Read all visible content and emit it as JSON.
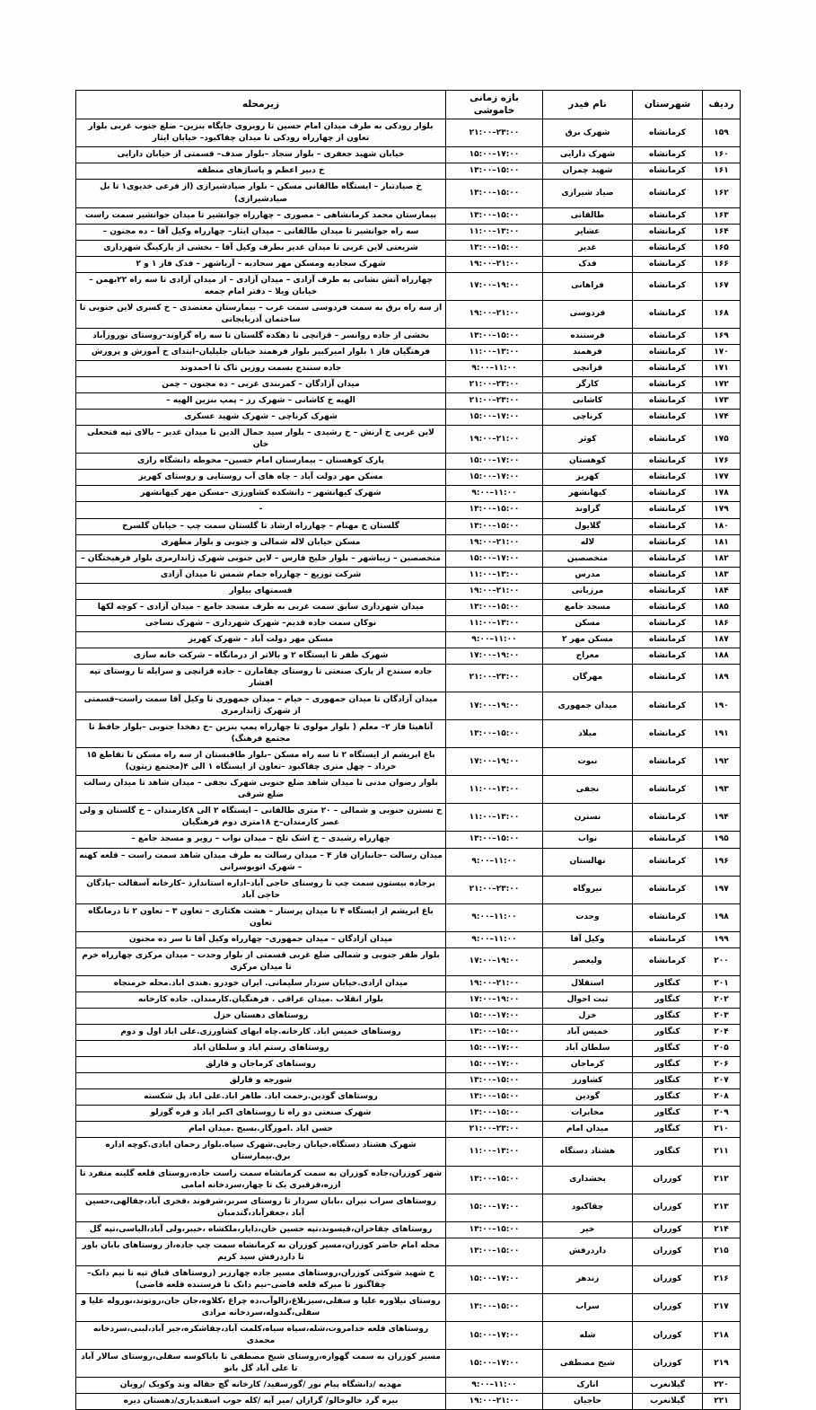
{
  "table": {
    "headers": {
      "row_no": "ردیف",
      "county": "شهرستان",
      "feeder": "نام فیدر",
      "time_range": "بازه زمانی خاموشی",
      "sub_area": "زیرمحله"
    },
    "rows": [
      {
        "no": "۱۵۹",
        "county": "کرمانشاه",
        "feeder": "شهرک برق",
        "time": "۲۱:۰۰–۲۳:۰۰",
        "area": "بلوار رودکی به طرف میدان امام حسین تا روبروی جایگاه بنزین– ضلع جنوب غربی بلوار تعاون از چهارراه رودکی تا میدان چقاکبود– خیابان ایثار"
      },
      {
        "no": "۱۶۰",
        "county": "کرمانشاه",
        "feeder": "شهرک دارایی",
        "time": "۱۵:۰۰–۱۷:۰۰",
        "area": "خیابان شهید جعفری – بلوار سجاد –بلوار صدف– قسمتی از خیابان دارایی"
      },
      {
        "no": "۱۶۱",
        "county": "کرمانشاه",
        "feeder": "شهید چمران",
        "time": "۱۳:۰۰–۱۵:۰۰",
        "area": "خ دبیر اعظم و پاساژهای منطقه"
      },
      {
        "no": "۱۶۲",
        "county": "کرمانشاه",
        "feeder": "صیاد شیرازی",
        "time": "۱۳:۰۰–۱۵:۰۰",
        "area": "خ صیادتبار – ایستگاه طالقانی مسکن – بلوار صیادشیرازی (از فرعی خدیوی۱ تا بل صیادشیرازی)"
      },
      {
        "no": "۱۶۳",
        "county": "کرمانشاه",
        "feeder": "طالقانی",
        "time": "۱۳:۰۰–۱۵:۰۰",
        "area": "بیمارستان محمد کرمانشاهی – مصوری – چهارراه جوانشیر تا میدان جوانشیر سمت راست"
      },
      {
        "no": "۱۶۴",
        "county": "کرمانشاه",
        "feeder": "عشایر",
        "time": "۱۱:۰۰–۱۳:۰۰",
        "area": "سه راه جوانشیر تا میدان طالقانی – میدان ایثار– چهارراه وکیل آقا – ده مجنون –"
      },
      {
        "no": "۱۶۵",
        "county": "کرمانشاه",
        "feeder": "غدیر",
        "time": "۱۳:۰۰–۱۵:۰۰",
        "area": "شریعتی لاین غربی تا میدان غدیر بطرف وکیل آقا – بخشی از پارکینگ شهرداری"
      },
      {
        "no": "۱۶۶",
        "county": "کرمانشاه",
        "feeder": "فدک",
        "time": "۱۹:۰۰–۲۱:۰۰",
        "area": "شهرک سجادیه ومسکن مهر سجادیه – آریاشهر – فدک فاز ۱ و ۲"
      },
      {
        "no": "۱۶۷",
        "county": "کرمانشاه",
        "feeder": "فراهانی",
        "time": "۱۷:۰۰–۱۹:۰۰",
        "area": "چهارراه آتش نشانی به طرف آزادی – میدان آزادی – از میدان آزادی تا سه راه ۲۲بهمن – خیابان ویلا – دفتر امام جمعه"
      },
      {
        "no": "۱۶۸",
        "county": "کرمانشاه",
        "feeder": "فردوسی",
        "time": "۱۹:۰۰–۲۱:۰۰",
        "area": "از سه راه برق به سمت فردوسی سمت غرب – بیمارستان معتضدی – خ کسری لاین جنوبی تا ساختمان آذربایجانی"
      },
      {
        "no": "۱۶۹",
        "county": "کرمانشاه",
        "feeder": "فرستنده",
        "time": "۱۳:۰۰–۱۵:۰۰",
        "area": "بخشی از جاده روانسر – قزانچی تا دهکده گلستان تا سه راه گراوند–روستای نوروزآباد"
      },
      {
        "no": "۱۷۰",
        "county": "کرمانشاه",
        "feeder": "فرهمند",
        "time": "۱۱:۰۰–۱۳:۰۰",
        "area": "فرهنگیان فاز ۱ بلوار امیرکبیر بلوار فرهمند خیابان جلیلیان–ابتدای خ آموزش و پرورش"
      },
      {
        "no": "۱۷۱",
        "county": "کرمانشاه",
        "feeder": "قزانچی",
        "time": "۹:۰۰–۱۱:۰۰",
        "area": "جاده سنندج بسمت روزین تاک تا احمدوند"
      },
      {
        "no": "۱۷۲",
        "county": "کرمانشاه",
        "feeder": "کارگر",
        "time": "۲۱:۰۰–۲۳:۰۰",
        "area": "میدان آزادگان – کمربندی غربی – ده مجنون – چمن"
      },
      {
        "no": "۱۷۳",
        "county": "کرمانشاه",
        "feeder": "کاشانی",
        "time": "۲۱:۰۰–۲۳:۰۰",
        "area": "الهیه خ کاشانی – شهرک رز – پمپ بنزین الهیه –"
      },
      {
        "no": "۱۷۴",
        "county": "کرمانشاه",
        "feeder": "کرناچی",
        "time": "۱۵:۰۰–۱۷:۰۰",
        "area": "شهرک کرناچی – شهرک شهید عسکری"
      },
      {
        "no": "۱۷۵",
        "county": "کرمانشاه",
        "feeder": "کوثر",
        "time": "۱۹:۰۰–۲۱:۰۰",
        "area": "لاین غربی خ ارنش – خ رشیدی – بلوار سید جمال الدین تا میدان غدیر – بالای تپه فتحعلی خان"
      },
      {
        "no": "۱۷۶",
        "county": "کرمانشاه",
        "feeder": "کوهستان",
        "time": "۱۵:۰۰–۱۷:۰۰",
        "area": "پارک کوهستان – بیمارستان امام حسین– محوطه دانشگاه رازی"
      },
      {
        "no": "۱۷۷",
        "county": "کرمانشاه",
        "feeder": "کهریز",
        "time": "۱۵:۰۰–۱۷:۰۰",
        "area": "مسکن مهر دولت آباد – چاه های آب روستایی و روستای کهریز"
      },
      {
        "no": "۱۷۸",
        "county": "کرمانشاه",
        "feeder": "کیهانشهر",
        "time": "۹:۰۰–۱۱:۰۰",
        "area": "شهرک کیهانشهر – دانشکده کشاورزی –مسکن مهر کیهانشهر"
      },
      {
        "no": "۱۷۹",
        "county": "کرمانشاه",
        "feeder": "گراوند",
        "time": "۱۳:۰۰–۱۵:۰۰",
        "area": "-"
      },
      {
        "no": "۱۸۰",
        "county": "کرمانشاه",
        "feeder": "گلایول",
        "time": "۱۳:۰۰–۱۵:۰۰",
        "area": "گلستان خ مهنام – چهارراه ارشاد تا گلستان سمت چپ – خیابان گلسرخ"
      },
      {
        "no": "۱۸۱",
        "county": "کرمانشاه",
        "feeder": "لاله",
        "time": "۱۹:۰۰–۲۱:۰۰",
        "area": "مسکن خیابان لاله شمالی و جنوبی و بلوار مطهری"
      },
      {
        "no": "۱۸۲",
        "county": "کرمانشاه",
        "feeder": "متخصصین",
        "time": "۱۵:۰۰–۱۷:۰۰",
        "area": "متخصصین – زیباشهر – بلوار خلیج فارس – لاین جنوبی شهرک ژاندارمری بلوار فرهیختگان –"
      },
      {
        "no": "۱۸۳",
        "county": "کرمانشاه",
        "feeder": "مدرس",
        "time": "۱۱:۰۰–۱۳:۰۰",
        "area": "شرکت توزیع – چهارراه حمام شمس تا میدان آزادی"
      },
      {
        "no": "۱۸۴",
        "county": "کرمانشاه",
        "feeder": "مرزبانی",
        "time": "۱۹:۰۰–۲۱:۰۰",
        "area": "قسمتهای بیلوار"
      },
      {
        "no": "۱۸۵",
        "county": "کرمانشاه",
        "feeder": "مسجد جامع",
        "time": "۱۳:۰۰–۱۵:۰۰",
        "area": "میدان شهرداری سابق سمت غربی به طرف مسجد جامع – میدان آزادی – کوچه لکها"
      },
      {
        "no": "۱۸۶",
        "county": "کرمانشاه",
        "feeder": "مسکن",
        "time": "۱۱:۰۰–۱۳:۰۰",
        "area": "نوکان سمت جاده قدیم– شهرک شهرداری – شهرک نساجی"
      },
      {
        "no": "۱۸۷",
        "county": "کرمانشاه",
        "feeder": "مسکن مهر ۲",
        "time": "۹:۰۰–۱۱:۰۰",
        "area": "مسکن مهر دولت آباد – شهرک کهریز"
      },
      {
        "no": "۱۸۸",
        "county": "کرمانشاه",
        "feeder": "معراج",
        "time": "۱۷:۰۰–۱۹:۰۰",
        "area": "شهرک ظفر تا ایستگاه ۲ و بالاتر از درمانگاه – شرکت خانه سازی"
      },
      {
        "no": "۱۸۹",
        "county": "کرمانشاه",
        "feeder": "مهرگان",
        "time": "۲۱:۰۰–۲۳:۰۰",
        "area": "جاده سنندج از پارک صنعتی تا روستای چقامارن – جاده قزانچی و سرایله تا روستای تپه افشار"
      },
      {
        "no": "۱۹۰",
        "county": "کرمانشاه",
        "feeder": "میدان جمهوری",
        "time": "۱۷:۰۰–۱۹:۰۰",
        "area": "میدان آزادگان تا میدان جمهوری – خیام – میدان جمهوری تا وکیل آقا سمت راست–قسمتی از شهرک ژاندارمری"
      },
      {
        "no": "۱۹۱",
        "county": "کرمانشاه",
        "feeder": "میلاد",
        "time": "۱۳:۰۰–۱۵:۰۰",
        "area": "آناهیتا فاز ۲– معلم ( بلوار مولوی تا چهارراه پمپ بنزین –خ دهخدا جنوبی –بلوار حافظ تا مجتمع فرهنگ)"
      },
      {
        "no": "۱۹۲",
        "county": "کرمانشاه",
        "feeder": "نبوت",
        "time": "۱۷:۰۰–۱۹:۰۰",
        "area": "باغ ابریشم از ایستگاه ۲ تا سه راه مسکن –بلوار طاقبستان از سه راه مسکن تا تقاطع ۱۵ خرداد – چهل متری چقاکبود –تعاون از ایستگاه ۱ الی ۴(مجتمع زیتون)"
      },
      {
        "no": "۱۹۳",
        "county": "کرمانشاه",
        "feeder": "نجفی",
        "time": "۱۱:۰۰–۱۳:۰۰",
        "area": "بلوار رضوان مدنی تا میدان شاهد ضلع جنوبی شهرک نجفی – میدان شاهد تا میدان رسالت ضلع شرقی"
      },
      {
        "no": "۱۹۴",
        "county": "کرمانشاه",
        "feeder": "نسترن",
        "time": "۱۱:۰۰–۱۳:۰۰",
        "area": "خ نسترن جنوبی و شمالی – ۲۰ متری طالقانی – ایستگاه ۲ الی ۸کارمندان – خ گلستان و ولی عصر کارمندان–خ ۱۸متری دوم فرهنگیان"
      },
      {
        "no": "۱۹۵",
        "county": "کرمانشاه",
        "feeder": "نواب",
        "time": "۱۳:۰۰–۱۵:۰۰",
        "area": "چهارراه رشیدی – خ اشک تلخ – میدان نواب – رویر و مسجد جامع –"
      },
      {
        "no": "۱۹۶",
        "county": "کرمانشاه",
        "feeder": "نهالستان",
        "time": "۹:۰۰–۱۱:۰۰",
        "area": "میدان رسالت –جانبازان فاز ۴ – میدان رسالت به طرف میدان شاهد سمت راست – قلعه کهنه – شهرک اتوبوسرانی"
      },
      {
        "no": "۱۹۷",
        "county": "کرمانشاه",
        "feeder": "نیروگاه",
        "time": "۲۱:۰۰–۲۳:۰۰",
        "area": "برجاده بیستون سمت چپ تا روستای حاجی آباد–اداره استاندارد –کارخانه آسفالت –پادگان حاجی آباد"
      },
      {
        "no": "۱۹۸",
        "county": "کرمانشاه",
        "feeder": "وحدت",
        "time": "۹:۰۰–۱۱:۰۰",
        "area": "باغ ابریشم از ایستگاه ۴ تا میدان پرستار – هشت هکتاری – تعاون ۳ – تعاون ۲ تا درمانگاه تعاون"
      },
      {
        "no": "۱۹۹",
        "county": "کرمانشاه",
        "feeder": "وکیل آقا",
        "time": "۹:۰۰–۱۱:۰۰",
        "area": "میدان آزادگان – میدان جمهوری– چهارراه وکیل آقا تا سر ده مجنون"
      },
      {
        "no": "۲۰۰",
        "county": "کرمانشاه",
        "feeder": "ولیعصر",
        "time": "۱۷:۰۰–۱۹:۰۰",
        "area": "بلوار ظفر جنوبی و شمالی ضلع غربی قسمتی از بلوار وحدت – میدان مرکزی چهارراه خرم تا میدان مرکزی"
      },
      {
        "no": "۲۰۱",
        "county": "کنگاور",
        "feeder": "استقلال",
        "time": "۱۹:۰۰–۲۱:۰۰",
        "area": "میدان ازادی.خیابان سردار سلیمانی. ایران خودرو .هندی اباد.محله خرمنجاه"
      },
      {
        "no": "۲۰۲",
        "county": "کنگاور",
        "feeder": "ثبت احوال",
        "time": "۱۷:۰۰–۱۹:۰۰",
        "area": "بلوار انقلاب .میدان عراقی . فرهنگیان.کارمندان. جاده کارخانه"
      },
      {
        "no": "۲۰۳",
        "county": "کنگاور",
        "feeder": "خزل",
        "time": "۱۵:۰۰–۱۷:۰۰",
        "area": "روستاهای دهستان خزل"
      },
      {
        "no": "۲۰۴",
        "county": "کنگاور",
        "feeder": "خمیس آباد",
        "time": "۱۳:۰۰–۱۵:۰۰",
        "area": "روستاهای خمیس اباد. کارخانه.چاه ابهای کشاورزی.علی اباد اول و دوم"
      },
      {
        "no": "۲۰۵",
        "county": "کنگاور",
        "feeder": "سلطان آباد",
        "time": "۱۵:۰۰–۱۷:۰۰",
        "area": "روستاهای رستم اباد و سلطان اباد"
      },
      {
        "no": "۲۰۶",
        "county": "کنگاور",
        "feeder": "کرماجان",
        "time": "۱۵:۰۰–۱۷:۰۰",
        "area": "روستاهای کرماجان و قارلق"
      },
      {
        "no": "۲۰۷",
        "county": "کنگاور",
        "feeder": "کشاورز",
        "time": "۱۳:۰۰–۱۵:۰۰",
        "area": "شورجه و قارلق"
      },
      {
        "no": "۲۰۸",
        "county": "کنگاور",
        "feeder": "گودین",
        "time": "۱۳:۰۰–۱۵:۰۰",
        "area": "روستاهای گودین.رحمت اباد. طاهر اباد.علی اباد پل شکسته"
      },
      {
        "no": "۲۰۹",
        "county": "کنگاور",
        "feeder": "مخابرات",
        "time": "۱۳:۰۰–۱۵:۰۰",
        "area": "شهرک صنعتی دو راه تا روستاهای اکبر اباد و قره گوزلو"
      },
      {
        "no": "۲۱۰",
        "county": "کنگاور",
        "feeder": "میدان امام",
        "time": "۲۱:۰۰–۲۳:۰۰",
        "area": "حسن اباد .اموزگار.بسیج .میدان امام"
      },
      {
        "no": "۲۱۱",
        "county": "کنگاور",
        "feeder": "هشتاد دستگاه",
        "time": "۱۱:۰۰–۱۳:۰۰",
        "area": "شهرک هشتاد دستگاه.خیابان رجایی.شهرک سپاه.بلوار رحمان ابادی.کوچه اداره برق.بیمارستان"
      },
      {
        "no": "۲۱۲",
        "county": "کوزران",
        "feeder": "بخشداری",
        "time": "۱۳:۰۰–۱۵:۰۰",
        "area": "شهر کوزران،جاده کوزران به سمت کرمانشاه سمت راست جاده،روستای قلعه گلینه منفرد تا ازره،قزقبری یک تا چهار،سردخانه امامی"
      },
      {
        "no": "۲۱۳",
        "county": "کوزران",
        "feeder": "چقاکبود",
        "time": "۱۵:۰۰–۱۷:۰۰",
        "area": "روستاهای سراب نیران ،بابان سردار تا روستای سربر،شرفوند ،فخری آباد،چقالهی،حسین آباد ،جعفرآباد،گندمبان"
      },
      {
        "no": "۲۱۴",
        "county": "کوزران",
        "feeder": "خیر",
        "time": "۱۳:۰۰–۱۵:۰۰",
        "area": "روستاهای چقاخزان،قیسوند،تپه حسین خان،دایار،ملکشاه ،خیبر،ولی آباد،الیاسی،تپه گل"
      },
      {
        "no": "۲۱۵",
        "county": "کوزران",
        "feeder": "داردرفش",
        "time": "۱۳:۰۰–۱۵:۰۰",
        "area": "محله امام حاضر کوزران،مسیر کوزران به کرمانشاه سمت چپ جاده،از روستاهای بابان باور تا داردرفش سید کریم"
      },
      {
        "no": "۲۱۶",
        "county": "کوزران",
        "feeder": "زندهر",
        "time": "۱۵:۰۰–۱۷:۰۰",
        "area": "خ شهید شوکتی کوزران،روستاهای مسیر جاده چهارزبر (روستاهای قباق تپه تا نیم دانک–چقاگنوز تا مبرکه قلعه قاضی–نیم دانک تا فرستنده قلعه قاضی)"
      },
      {
        "no": "۲۱۷",
        "county": "کوزران",
        "feeder": "سراب",
        "time": "۱۳:۰۰–۱۵:۰۰",
        "area": "روستای نیلاوره علیا و سفلی،سبزبلاغ،زالوآب،ده چراغ ،کلاوه،جان جان،روتوند،نوروله علیا و سفلی،گندوله،سردخانه مرادی"
      },
      {
        "no": "۲۱۸",
        "county": "کوزران",
        "feeder": "شله",
        "time": "۱۵:۰۰–۱۷:۰۰",
        "area": "روستاهای قلعه خدامروت،شله،سیاه سیاه،کلمت آباد،چقاشکره،جبر آباد،لبنی،سردخانه محمدی"
      },
      {
        "no": "۲۱۹",
        "county": "کوزران",
        "feeder": "شیخ مصطفی",
        "time": "۱۵:۰۰–۱۷:۰۰",
        "area": "مسیر کوزران به سمت گهواره،روستای شیخ مصطفی تا باباکوسه سفلی،روستای سالار آباد تا علی آباد گل بانو"
      },
      {
        "no": "۲۲۰",
        "county": "گیلانغرب",
        "feeder": "انارک",
        "time": "۹:۰۰–۱۱:۰۰",
        "area": "مهدیه /دانشگاه پیام نور /گورسفید/ کارخانه گچ جقاله وند وکویک /رویان"
      },
      {
        "no": "۲۲۱",
        "county": "گیلانغرب",
        "feeder": "حاجیان",
        "time": "۱۹:۰۰–۲۱:۰۰",
        "area": "بیره گرد خالوخالو/ گرازان /میر آبه /کله جوب اسفندیاری/دهستان دیره"
      }
    ]
  }
}
